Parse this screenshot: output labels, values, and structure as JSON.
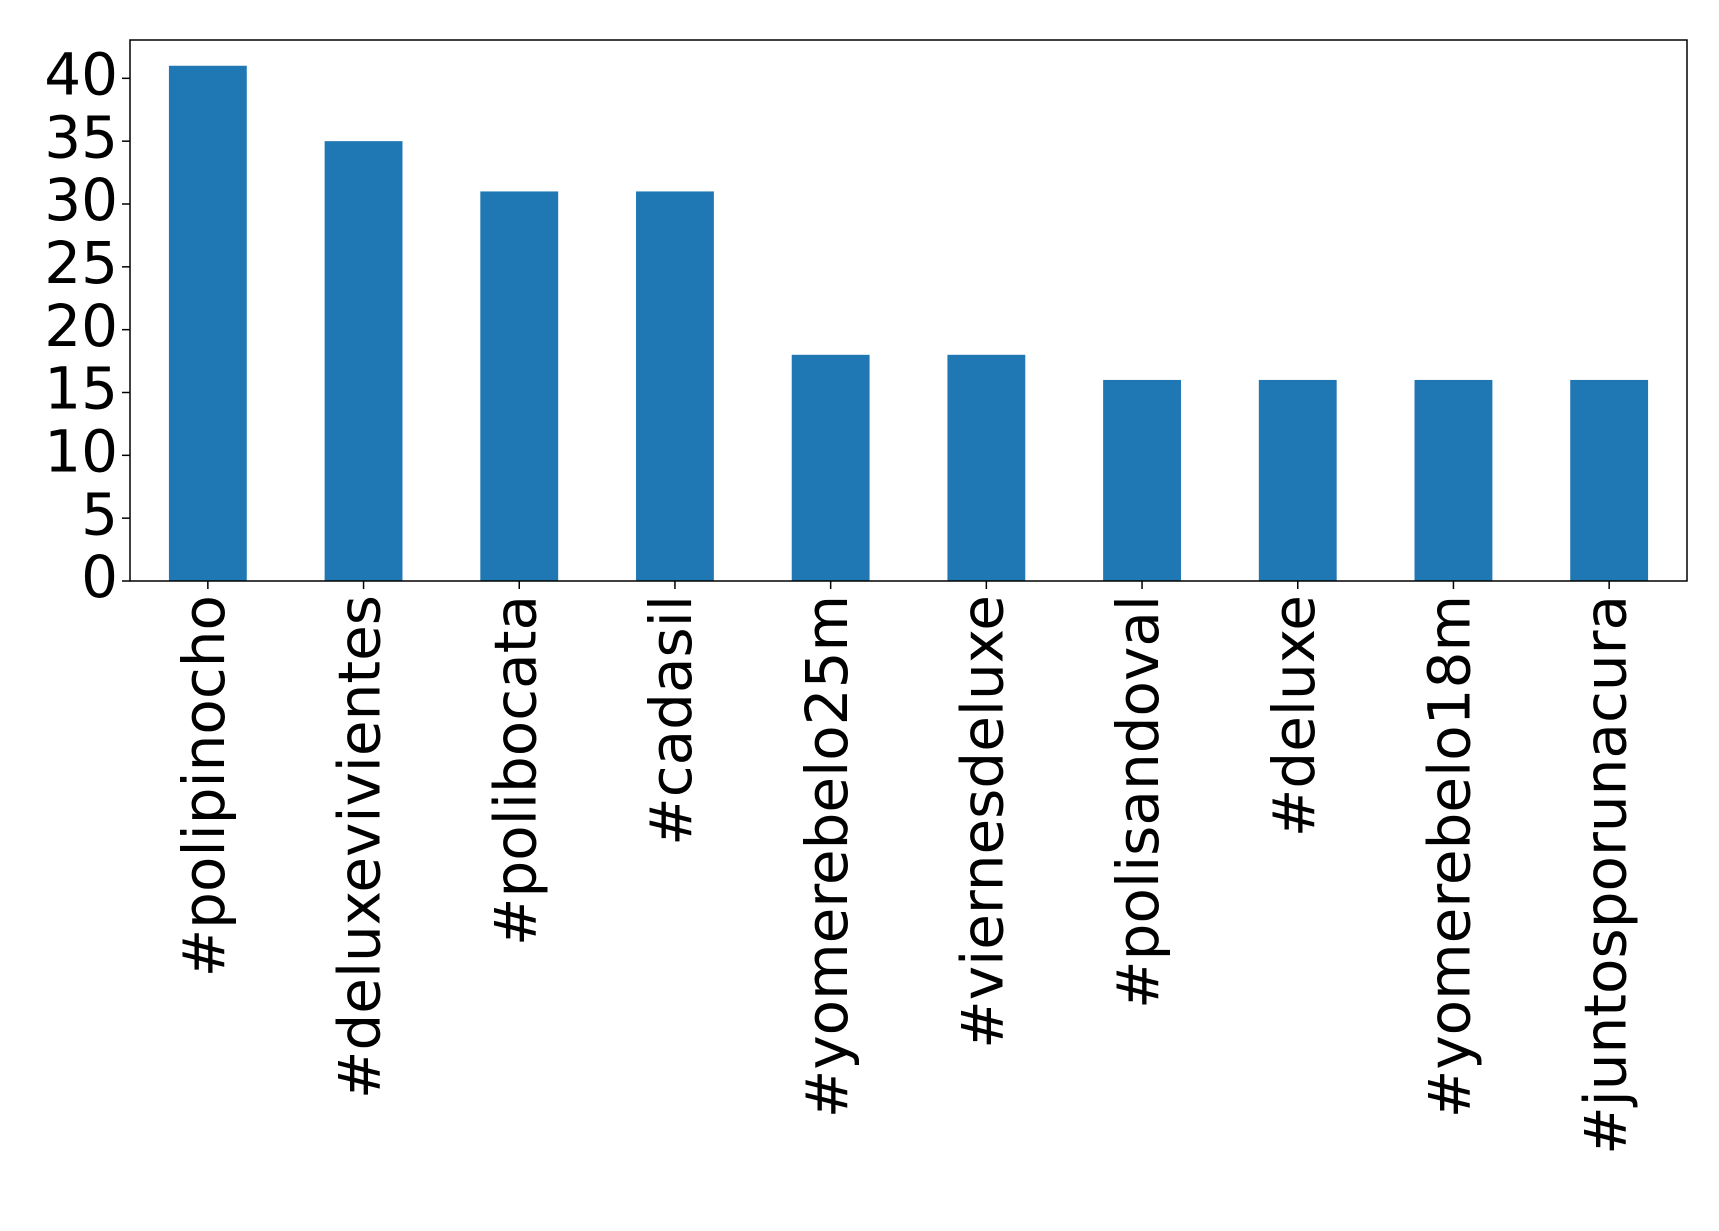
{
  "chart_data": {
    "type": "bar",
    "categories": [
      "#polipinocho",
      "#deluxevivientes",
      "#polibocata",
      "#cadasil",
      "#yomerebelo25m",
      "#viernesdeluxe",
      "#polisandoval",
      "#deluxe",
      "#yomerebelo18m",
      "#juntosporunacura"
    ],
    "values": [
      41,
      35,
      31,
      31,
      18,
      18,
      16,
      16,
      16,
      16
    ],
    "color": "#1f77b4",
    "ylim": [
      0,
      43.05
    ],
    "yticks": [
      0,
      5,
      10,
      15,
      20,
      25,
      30,
      35,
      40
    ],
    "grid": false
  }
}
